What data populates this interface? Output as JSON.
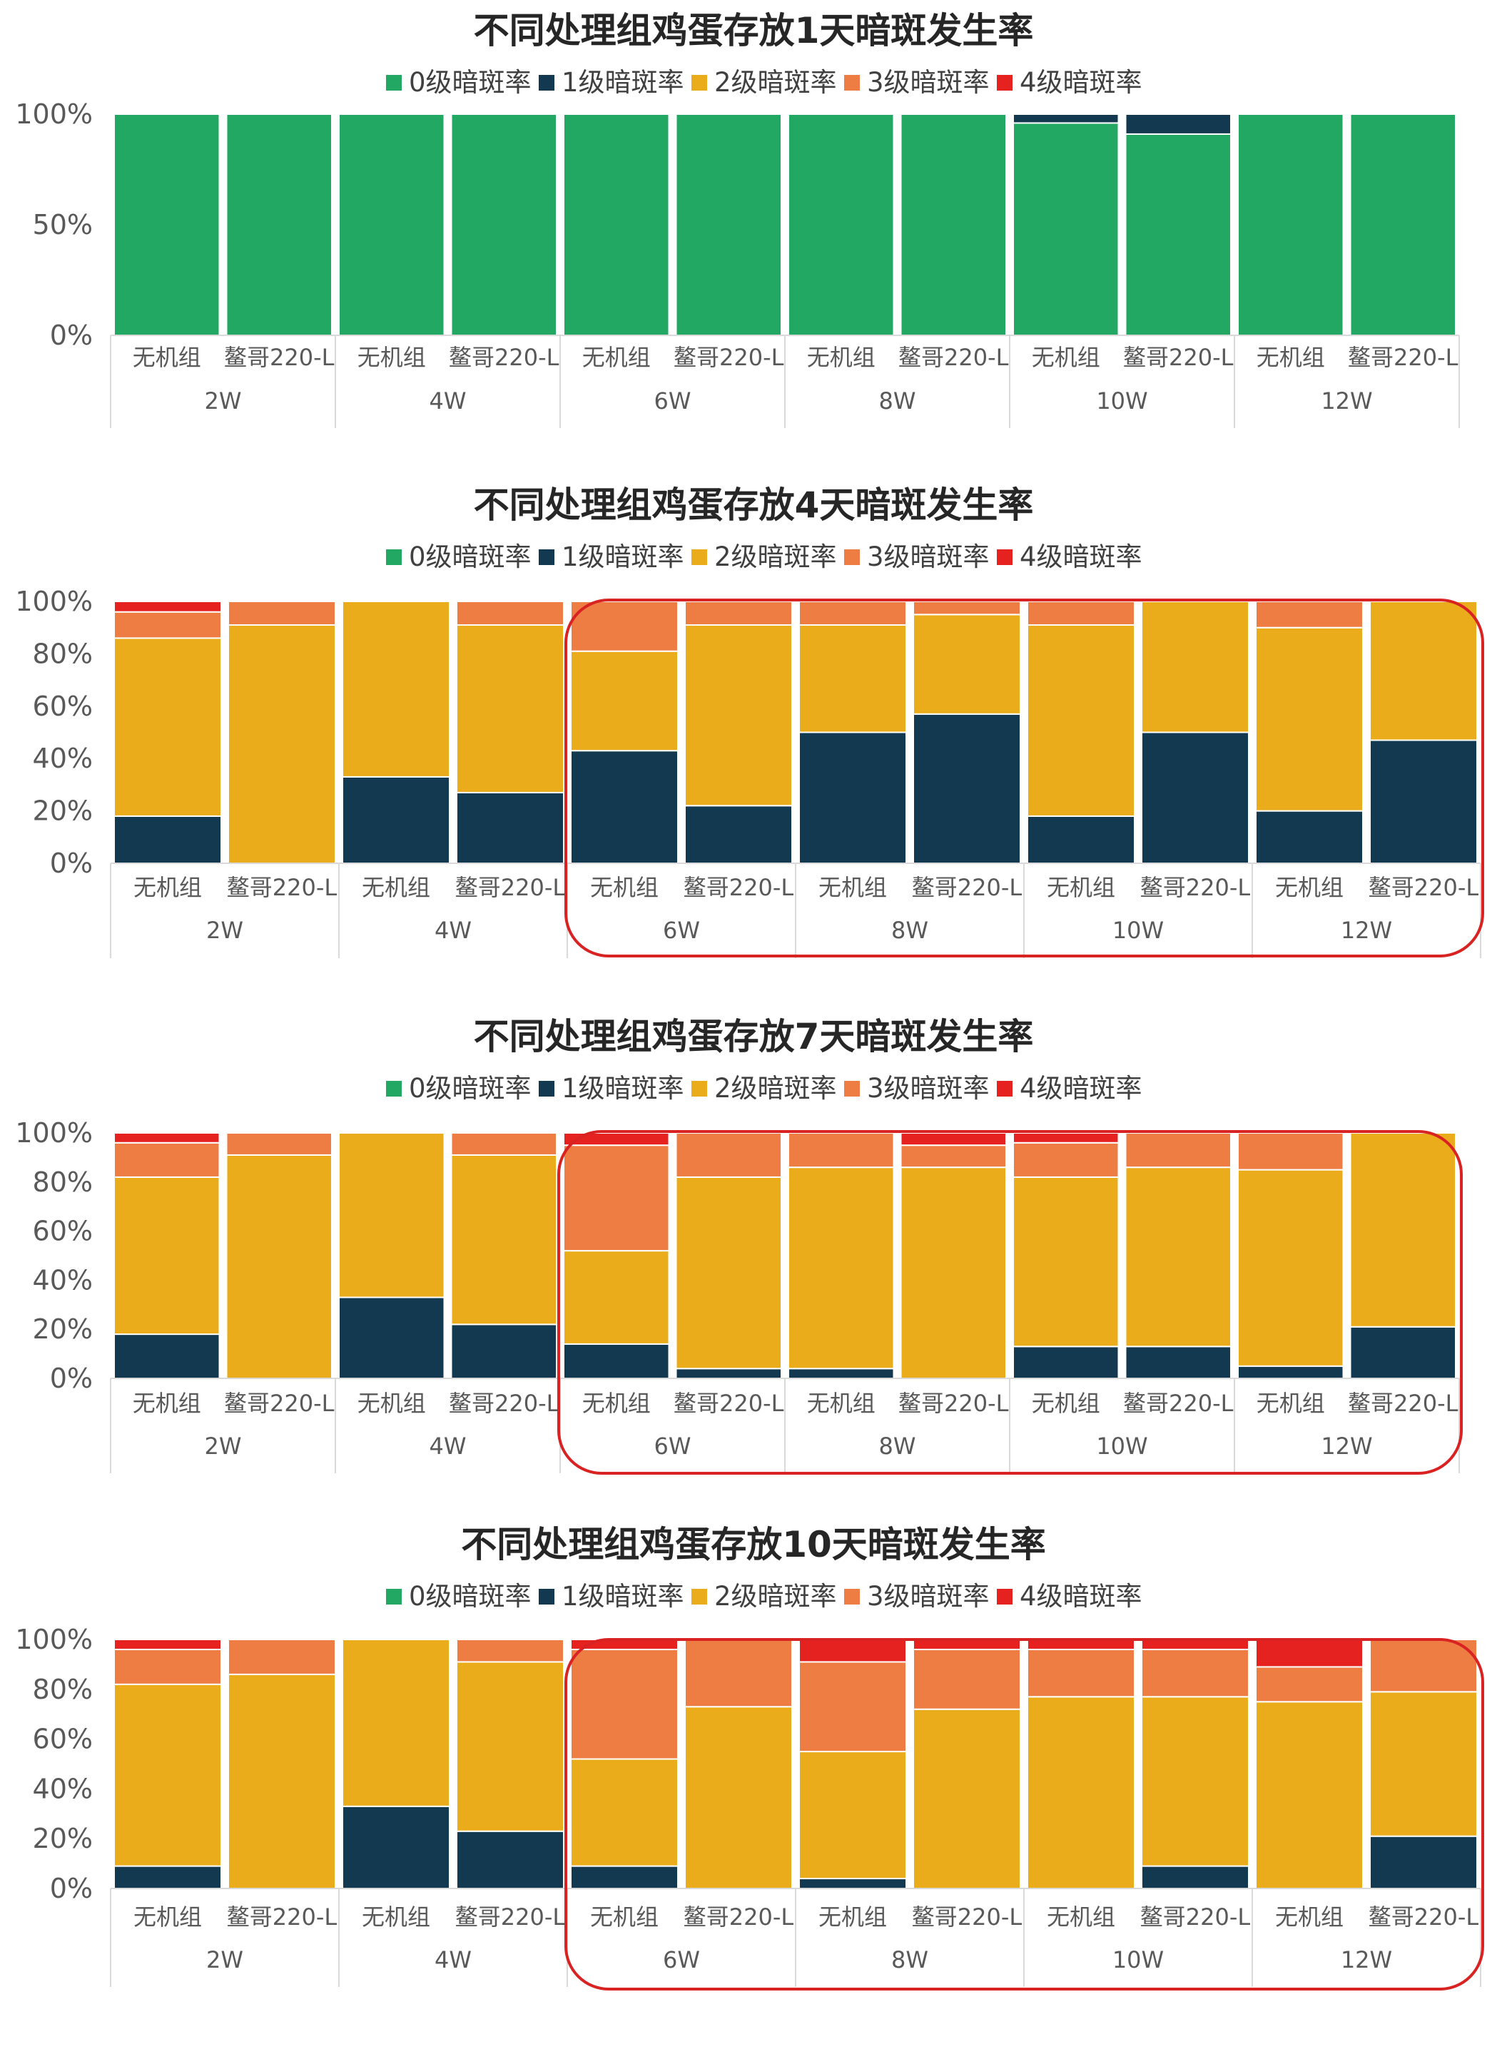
{
  "legend": [
    "0级暗斑率",
    "1级暗斑率",
    "2级暗斑率",
    "3级暗斑率",
    "4级暗斑率"
  ],
  "colors": [
    "#22a862",
    "#12394f",
    "#ebac1b",
    "#ee7d44",
    "#e5221f"
  ],
  "highlight_color": "#d92222",
  "chart_data": [
    {
      "type": "bar",
      "stacked": "percent",
      "title": "不同处理组鸡蛋存放1天暗斑发生率",
      "yticks": [
        "0%",
        "50%",
        "100%"
      ],
      "ylim": [
        0,
        100
      ],
      "groups": [
        "2W",
        "4W",
        "6W",
        "8W",
        "10W",
        "12W"
      ],
      "subcategories": [
        "无机组",
        "鳌哥220-L"
      ],
      "series": [
        {
          "name": "0级暗斑率",
          "values": [
            100,
            100,
            100,
            100,
            100,
            100,
            100,
            100,
            96,
            91,
            100,
            100
          ]
        },
        {
          "name": "1级暗斑率",
          "values": [
            0,
            0,
            0,
            0,
            0,
            0,
            0,
            0,
            4,
            9,
            0,
            0
          ]
        },
        {
          "name": "2级暗斑率",
          "values": [
            0,
            0,
            0,
            0,
            0,
            0,
            0,
            0,
            0,
            0,
            0,
            0
          ]
        },
        {
          "name": "3级暗斑率",
          "values": [
            0,
            0,
            0,
            0,
            0,
            0,
            0,
            0,
            0,
            0,
            0,
            0
          ]
        },
        {
          "name": "4级暗斑率",
          "values": [
            0,
            0,
            0,
            0,
            0,
            0,
            0,
            0,
            0,
            0,
            0,
            0
          ]
        }
      ],
      "highlight": false
    },
    {
      "type": "bar",
      "stacked": "percent",
      "title": "不同处理组鸡蛋存放4天暗斑发生率",
      "yticks": [
        "0%",
        "20%",
        "40%",
        "60%",
        "80%",
        "100%"
      ],
      "ylim": [
        0,
        100
      ],
      "groups": [
        "2W",
        "4W",
        "6W",
        "8W",
        "10W",
        "12W"
      ],
      "subcategories": [
        "无机组",
        "鳌哥220-L"
      ],
      "series": [
        {
          "name": "0级暗斑率",
          "values": [
            0,
            0,
            0,
            0,
            0,
            0,
            0,
            0,
            0,
            0,
            0,
            0
          ]
        },
        {
          "name": "1级暗斑率",
          "values": [
            18,
            0,
            33,
            27,
            43,
            22,
            50,
            57,
            18,
            50,
            20,
            47
          ]
        },
        {
          "name": "2级暗斑率",
          "values": [
            68,
            91,
            67,
            64,
            38,
            69,
            41,
            38,
            73,
            50,
            70,
            53
          ]
        },
        {
          "name": "3级暗斑率",
          "values": [
            10,
            9,
            0,
            9,
            19,
            9,
            9,
            5,
            9,
            0,
            10,
            0
          ]
        },
        {
          "name": "4级暗斑率",
          "values": [
            4,
            0,
            0,
            0,
            0,
            0,
            0,
            0,
            0,
            0,
            0,
            0
          ]
        }
      ],
      "highlight": true
    },
    {
      "type": "bar",
      "stacked": "percent",
      "title": "不同处理组鸡蛋存放7天暗斑发生率",
      "yticks": [
        "0%",
        "20%",
        "40%",
        "60%",
        "80%",
        "100%"
      ],
      "ylim": [
        0,
        100
      ],
      "groups": [
        "2W",
        "4W",
        "6W",
        "8W",
        "10W",
        "12W"
      ],
      "subcategories": [
        "无机组",
        "鳌哥220-L"
      ],
      "series": [
        {
          "name": "0级暗斑率",
          "values": [
            0,
            0,
            0,
            0,
            0,
            0,
            0,
            0,
            0,
            0,
            0,
            0
          ]
        },
        {
          "name": "1级暗斑率",
          "values": [
            18,
            0,
            33,
            22,
            14,
            4,
            4,
            0,
            13,
            13,
            5,
            21
          ]
        },
        {
          "name": "2级暗斑率",
          "values": [
            64,
            91,
            67,
            69,
            38,
            78,
            82,
            86,
            69,
            73,
            80,
            79
          ]
        },
        {
          "name": "3级暗斑率",
          "values": [
            14,
            9,
            0,
            9,
            43,
            18,
            14,
            9,
            14,
            14,
            15,
            0
          ]
        },
        {
          "name": "4级暗斑率",
          "values": [
            4,
            0,
            0,
            0,
            5,
            0,
            0,
            5,
            4,
            0,
            0,
            0
          ]
        }
      ],
      "highlight": true
    },
    {
      "type": "bar",
      "stacked": "percent",
      "title": "不同处理组鸡蛋存放10天暗斑发生率",
      "yticks": [
        "0%",
        "20%",
        "40%",
        "60%",
        "80%",
        "100%"
      ],
      "ylim": [
        0,
        100
      ],
      "groups": [
        "2W",
        "4W",
        "6W",
        "8W",
        "10W",
        "12W"
      ],
      "subcategories": [
        "无机组",
        "鳌哥220-L"
      ],
      "series": [
        {
          "name": "0级暗斑率",
          "values": [
            0,
            0,
            0,
            0,
            0,
            0,
            0,
            0,
            0,
            0,
            0,
            0
          ]
        },
        {
          "name": "1级暗斑率",
          "values": [
            9,
            0,
            33,
            23,
            9,
            0,
            4,
            0,
            0,
            9,
            0,
            21
          ]
        },
        {
          "name": "2级暗斑率",
          "values": [
            73,
            86,
            67,
            68,
            43,
            73,
            51,
            72,
            77,
            68,
            75,
            58
          ]
        },
        {
          "name": "3级暗斑率",
          "values": [
            14,
            14,
            0,
            9,
            44,
            27,
            36,
            24,
            19,
            19,
            14,
            21
          ]
        },
        {
          "name": "4级暗斑率",
          "values": [
            4,
            0,
            0,
            0,
            4,
            0,
            9,
            4,
            4,
            4,
            11,
            0
          ]
        }
      ],
      "highlight": true
    }
  ]
}
